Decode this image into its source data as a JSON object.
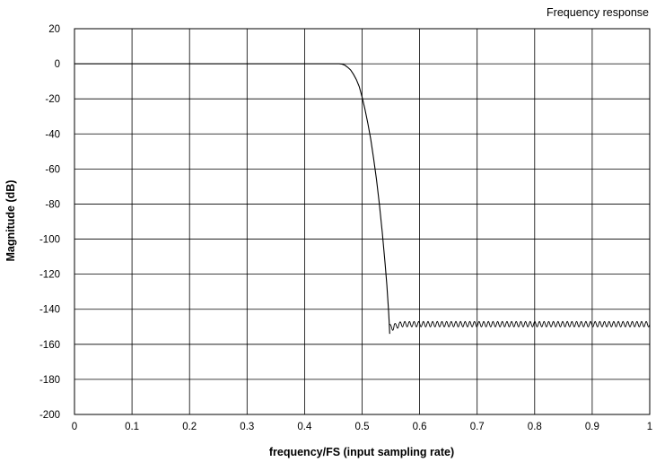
{
  "chart_data": {
    "type": "line",
    "title": "Frequency response",
    "xlabel": "frequency/FS (input sampling rate)",
    "ylabel": "Magnitude (dB)",
    "xlim": [
      0,
      1
    ],
    "ylim": [
      -200,
      20
    ],
    "x_ticks": [
      0,
      0.1,
      0.2,
      0.3,
      0.4,
      0.5,
      0.6,
      0.7,
      0.8,
      0.9,
      1
    ],
    "x_tick_labels": [
      "0",
      "0.1",
      "0.2",
      "0.3",
      "0.4",
      "0.5",
      "0.6",
      "0.7",
      "0.8",
      "0.9",
      "1"
    ],
    "y_ticks": [
      20,
      0,
      -20,
      -40,
      -60,
      -80,
      -100,
      -120,
      -140,
      -160,
      -180,
      -200
    ],
    "y_tick_labels": [
      "20",
      "0",
      "-20",
      "-40",
      "-60",
      "-80",
      "-100",
      "-120",
      "-140",
      "-160",
      "-180",
      "-200"
    ],
    "grid": true,
    "line_color": "#000000",
    "grid_color": "#000000",
    "series": [
      {
        "x": [
          0,
          0.05,
          0.1,
          0.15,
          0.2,
          0.25,
          0.3,
          0.35,
          0.4,
          0.45,
          0.46,
          0.465,
          0.47,
          0.475,
          0.48,
          0.485,
          0.49,
          0.495,
          0.5,
          0.505,
          0.51,
          0.515,
          0.52,
          0.525,
          0.53,
          0.535,
          0.54,
          0.543,
          0.545,
          0.546,
          0.547,
          0.548
        ],
        "y": [
          0,
          0,
          0,
          0,
          0,
          0,
          0,
          0,
          0,
          0,
          0,
          -0.2,
          -0.8,
          -2,
          -3.5,
          -6,
          -9,
          -13,
          -19,
          -26,
          -34,
          -43,
          -54,
          -66,
          -80,
          -96,
          -114,
          -126,
          -136,
          -141,
          -147,
          -154
        ]
      },
      {
        "x": [
          0.548,
          1
        ],
        "y_base": -148.5,
        "ripple_amplitude": 1.5,
        "ripple_cycles": 56
      }
    ]
  }
}
